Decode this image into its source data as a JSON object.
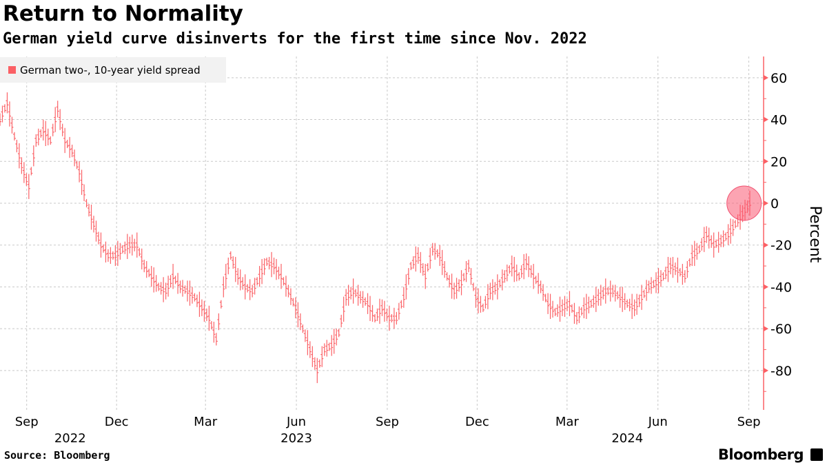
{
  "header": {
    "title": "Return to Normality",
    "subtitle": "German yield curve disinverts for the first time since Nov. 2022"
  },
  "footer": {
    "source": "Source: Bloomberg",
    "logo": "Bloomberg"
  },
  "chart_data": {
    "type": "bar",
    "style": "ohlc",
    "title": "Return to Normality",
    "subtitle": "German yield curve disinverts for the first time since Nov. 2022",
    "ylabel": "Percent",
    "ylim": [
      -95,
      70
    ],
    "yticks": [
      60,
      40,
      20,
      0,
      -20,
      -40,
      -60,
      -80
    ],
    "y_axis_side": "right",
    "grid": true,
    "legend_position": "top-left",
    "x_range": [
      "2022-08-05",
      "2024-09-02"
    ],
    "xticks": [
      {
        "label": "Sep",
        "date": "2022-09-01"
      },
      {
        "label": "Dec",
        "date": "2022-12-01"
      },
      {
        "label": "Mar",
        "date": "2023-03-01"
      },
      {
        "label": "Jun",
        "date": "2023-06-01"
      },
      {
        "label": "Sep",
        "date": "2023-09-01"
      },
      {
        "label": "Dec",
        "date": "2023-12-01"
      },
      {
        "label": "Mar",
        "date": "2024-03-01"
      },
      {
        "label": "Jun",
        "date": "2024-06-01"
      },
      {
        "label": "Sep",
        "date": "2024-09-01"
      }
    ],
    "year_labels": [
      {
        "label": "2022",
        "date": "2022-10-15"
      },
      {
        "label": "2023",
        "date": "2023-06-01"
      },
      {
        "label": "2024",
        "date": "2024-05-01"
      }
    ],
    "highlight": {
      "date": "2024-08-30",
      "value": 0
    },
    "color": "#fb6065",
    "series": [
      {
        "name": "German two-, 10-year yield spread",
        "values": [
          40,
          48,
          32,
          18,
          8,
          30,
          35,
          30,
          45,
          30,
          25,
          15,
          0,
          -10,
          -20,
          -25,
          -25,
          -22,
          -20,
          -20,
          -30,
          -35,
          -40,
          -42,
          -35,
          -40,
          -42,
          -45,
          -50,
          -55,
          -65,
          -40,
          -25,
          -35,
          -40,
          -42,
          -35,
          -28,
          -30,
          -35,
          -42,
          -50,
          -60,
          -70,
          -80,
          -70,
          -68,
          -62,
          -45,
          -42,
          -45,
          -48,
          -55,
          -50,
          -55,
          -55,
          -45,
          -30,
          -25,
          -35,
          -22,
          -25,
          -35,
          -42,
          -38,
          -30,
          -45,
          -50,
          -42,
          -40,
          -35,
          -30,
          -35,
          -28,
          -35,
          -40,
          -48,
          -52,
          -50,
          -48,
          -55,
          -50,
          -48,
          -45,
          -42,
          -42,
          -45,
          -48,
          -50,
          -45,
          -40,
          -38,
          -35,
          -30,
          -32,
          -35,
          -25,
          -22,
          -15,
          -20,
          -18,
          -15,
          -10,
          -5,
          0
        ]
      }
    ]
  }
}
